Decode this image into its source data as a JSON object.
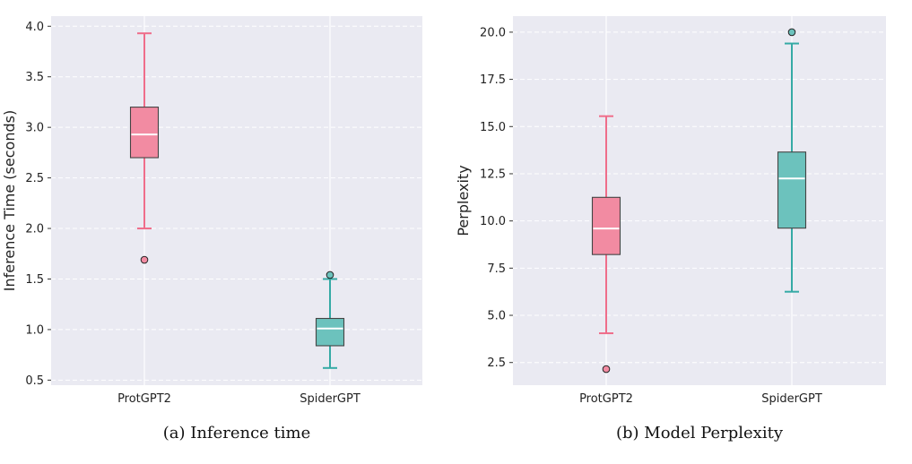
{
  "chart_data": [
    {
      "type": "box",
      "caption": "(a) Inference time",
      "ylabel": "Inference Time (seconds)",
      "xlabel": "",
      "ylim": [
        0.45,
        4.1
      ],
      "yticks": [
        "0.5",
        "1.0",
        "1.5",
        "2.0",
        "2.5",
        "3.0",
        "3.5",
        "4.0"
      ],
      "grid": true,
      "categories": [
        "ProtGPT2",
        "SpiderGPT"
      ],
      "boxes": [
        {
          "label": "ProtGPT2",
          "whisker_low": 2.0,
          "q1": 2.7,
          "median": 2.93,
          "q3": 3.2,
          "whisker_high": 3.93,
          "outliers": [
            1.69
          ],
          "color": "#f28ba2",
          "line_color": "#ef6d8a"
        },
        {
          "label": "SpiderGPT",
          "whisker_low": 0.62,
          "q1": 0.84,
          "median": 1.01,
          "q3": 1.11,
          "whisker_high": 1.5,
          "outliers": [
            1.54
          ],
          "color": "#6cc2bd",
          "line_color": "#35aaa5"
        }
      ]
    },
    {
      "type": "box",
      "caption": "(b) Model Perplexity",
      "ylabel": "Perplexity",
      "xlabel": "",
      "ylim": [
        1.3,
        20.85
      ],
      "yticks": [
        "2.5",
        "5.0",
        "7.5",
        "10.0",
        "12.5",
        "15.0",
        "17.5",
        "20.0"
      ],
      "grid": true,
      "categories": [
        "ProtGPT2",
        "SpiderGPT"
      ],
      "boxes": [
        {
          "label": "ProtGPT2",
          "whisker_low": 4.05,
          "q1": 8.22,
          "median": 9.6,
          "q3": 11.25,
          "whisker_high": 15.55,
          "outliers": [
            2.15
          ],
          "color": "#f28ba2",
          "line_color": "#ef6d8a"
        },
        {
          "label": "SpiderGPT",
          "whisker_low": 6.25,
          "q1": 9.62,
          "median": 12.25,
          "q3": 13.65,
          "whisker_high": 19.4,
          "outliers": [
            20.0
          ],
          "color": "#6cc2bd",
          "line_color": "#35aaa5"
        }
      ]
    }
  ]
}
